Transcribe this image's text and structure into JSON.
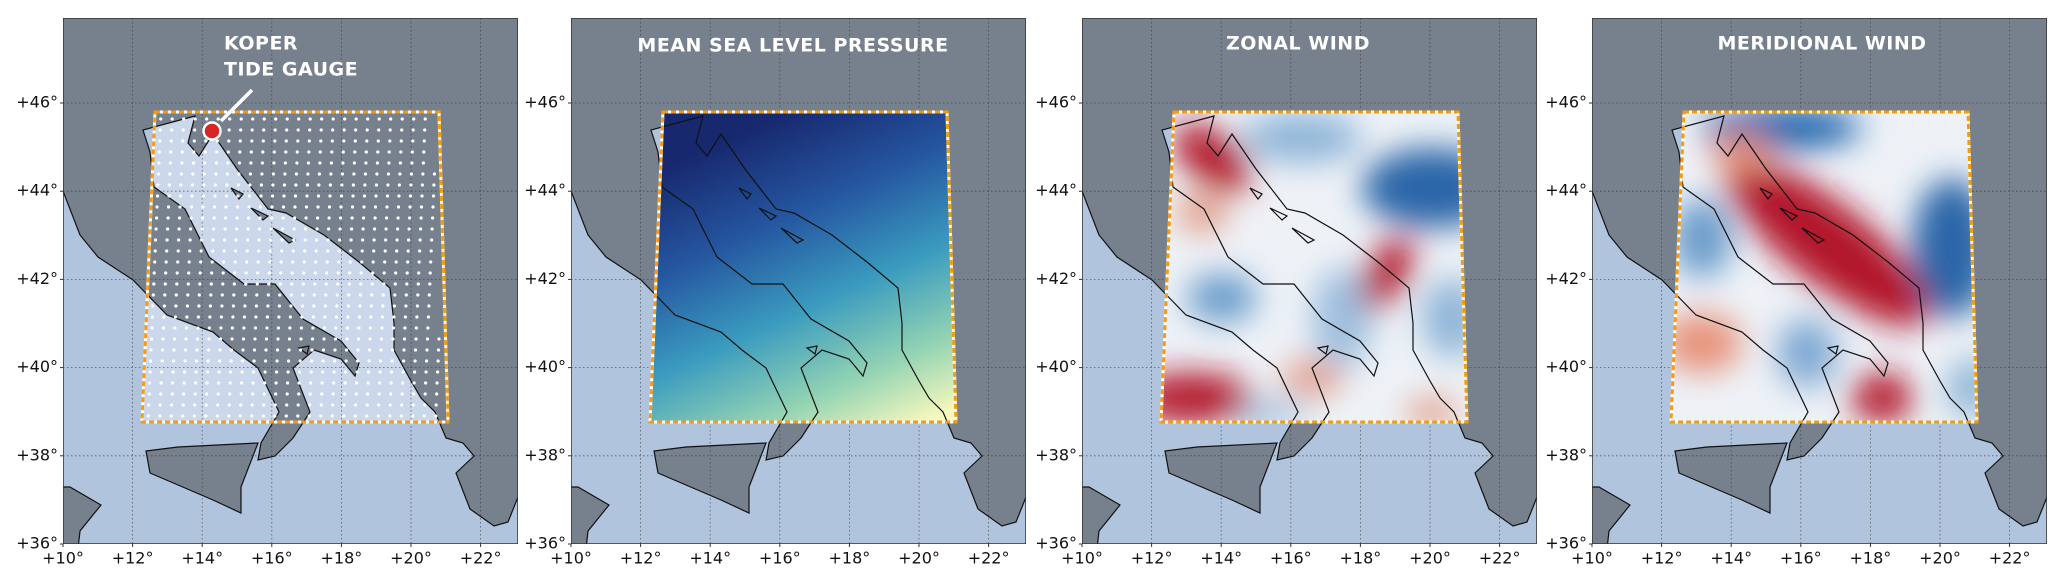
{
  "panels": [
    {
      "annotation": [
        "KOPER",
        "TIDE GAUGE"
      ]
    },
    {
      "title": "MEAN SEA LEVEL PRESSURE"
    },
    {
      "title": "ZONAL WIND"
    },
    {
      "title": "MERIDIONAL WIND"
    }
  ],
  "lat_ticks": [
    {
      "value": 36,
      "label": "+36°"
    },
    {
      "value": 38,
      "label": "+38°"
    },
    {
      "value": 40,
      "label": "+40°"
    },
    {
      "value": 42,
      "label": "+42°"
    },
    {
      "value": 44,
      "label": "+44°"
    },
    {
      "value": 46,
      "label": "+46°"
    }
  ],
  "lon_ticks": [
    {
      "value": 10,
      "label": "+10°"
    },
    {
      "value": 12,
      "label": "+12°"
    },
    {
      "value": 14,
      "label": "+14°"
    },
    {
      "value": 16,
      "label": "+16°"
    },
    {
      "value": 18,
      "label": "+18°"
    },
    {
      "value": 20,
      "label": "+20°"
    },
    {
      "value": 22,
      "label": "+22°"
    }
  ]
}
